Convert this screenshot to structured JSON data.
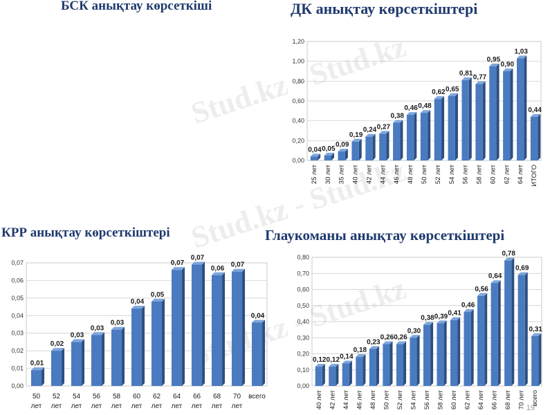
{
  "titles": {
    "bsk": "БСК анықтау көрсеткіші",
    "dk": "ДК анықтау көрсеткіштері",
    "krr": "КРР анықтау көрсеткіштері",
    "glaucoma": "Глаукоманы анықтау көрсеткіштері"
  },
  "watermark": "Stud.kz - Stud.kz",
  "page_number": "19",
  "colors": {
    "bar": "#4a7bc0",
    "bar_dark": "#2d4f80",
    "title": "#1f3a6e"
  },
  "chart_data": [
    {
      "id": "dk",
      "type": "bar",
      "title": "ДК анықтау көрсеткіштері",
      "categories": [
        "25 лет",
        "30 лет",
        "35 лет",
        "40 лет",
        "42 лет",
        "44 лет",
        "46 лет",
        "48 лет",
        "50 лет",
        "52 лет",
        "54 лет",
        "56 лет",
        "58 лет",
        "60 лет",
        "62 лет",
        "64 лет",
        "ИТОГО"
      ],
      "values": [
        0.04,
        0.05,
        0.09,
        0.19,
        0.24,
        0.27,
        0.38,
        0.46,
        0.48,
        0.62,
        0.65,
        0.81,
        0.77,
        0.95,
        0.9,
        1.03,
        0.44
      ],
      "labels": [
        "0,04",
        "0,05",
        "0,09",
        "0,19",
        "0,24",
        "0,27",
        "0,38",
        "0,46",
        "0,48",
        "0,62",
        "0,65",
        "0,81",
        "0,77",
        "0,95",
        "0,90",
        "1,03",
        "0,44"
      ],
      "yticks": [
        "0,00",
        "0,20",
        "0,40",
        "0,60",
        "0,80",
        "1,00",
        "1,20"
      ],
      "ylim": [
        0,
        1.2
      ],
      "grid": true,
      "x_labels_rotated": true
    },
    {
      "id": "krr",
      "type": "bar",
      "title": "КРР анықтау көрсеткіштері",
      "categories": [
        "50 лет",
        "52 лет",
        "54 лет",
        "56 лет",
        "58 лет",
        "60 лет",
        "62 лет",
        "64 лет",
        "66 лет",
        "68 лет",
        "70 лет",
        "всего"
      ],
      "values": [
        0.009,
        0.02,
        0.025,
        0.029,
        0.032,
        0.044,
        0.048,
        0.066,
        0.069,
        0.063,
        0.065,
        0.036
      ],
      "labels": [
        "0,01",
        "0,02",
        "0,03",
        "0,03",
        "0,03",
        "0,04",
        "0,05",
        "0,07",
        "0,07",
        "0,06",
        "0,07",
        "0,04"
      ],
      "yticks": [
        "0,00",
        "0,01",
        "0,02",
        "0,03",
        "0,04",
        "0,05",
        "0,06",
        "0,07"
      ],
      "ylim": [
        0,
        0.07
      ],
      "grid": true,
      "x_labels_rotated": false
    },
    {
      "id": "glaucoma",
      "type": "bar",
      "title": "Глаукоманы анықтау көрсеткіштері",
      "categories": [
        "40 лет",
        "42 лет",
        "44 лет",
        "46 лет",
        "48 лет",
        "50 лет",
        "52 лет",
        "54 лет",
        "56 лет",
        "58 лет",
        "60 лет",
        "62 лет",
        "64 лет",
        "66 лет",
        "68 лет",
        "70 лет",
        "всего"
      ],
      "values": [
        0.12,
        0.12,
        0.14,
        0.18,
        0.23,
        0.26,
        0.26,
        0.3,
        0.38,
        0.39,
        0.41,
        0.46,
        0.56,
        0.64,
        0.78,
        0.69,
        0.31
      ],
      "labels": [
        "0,12",
        "0,12",
        "0,14",
        "0,18",
        "0,23",
        "0,26",
        "0,26",
        "0,30",
        "0,38",
        "0,39",
        "0,41",
        "0,46",
        "0,56",
        "0,64",
        "0,78",
        "0,69",
        "0,31"
      ],
      "yticks": [
        "0,00",
        "0,10",
        "0,20",
        "0,30",
        "0,40",
        "0,50",
        "0,60",
        "0,70",
        "0,80"
      ],
      "ylim": [
        0,
        0.8
      ],
      "grid": true,
      "x_labels_rotated": true
    }
  ]
}
